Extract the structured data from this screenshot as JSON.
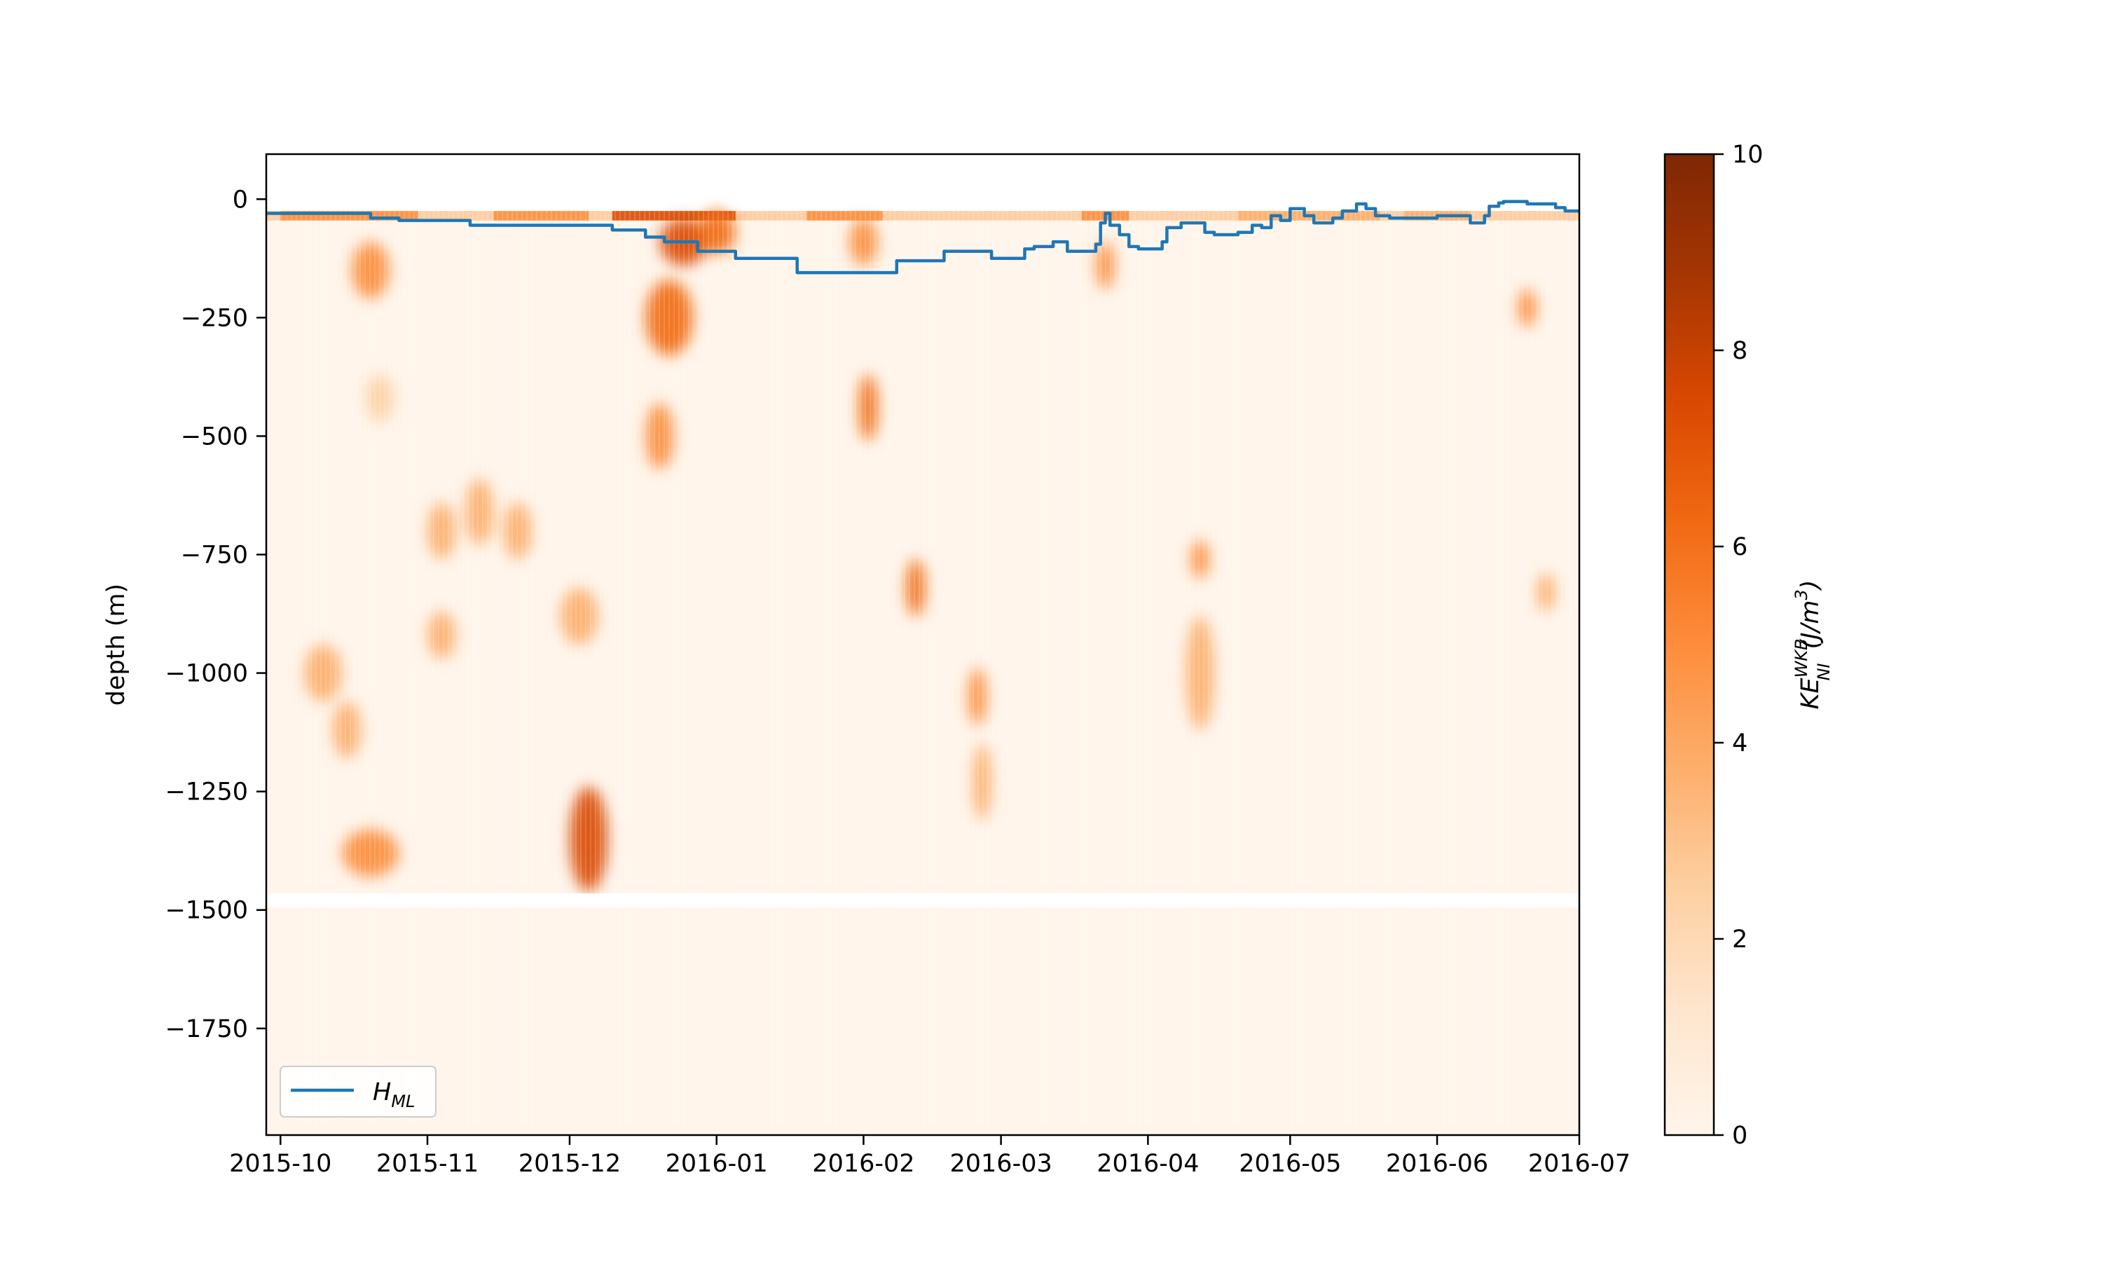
{
  "chart_data": {
    "type": "heatmap",
    "title": "",
    "xlabel": "",
    "ylabel": "depth (m)",
    "x_ticks": [
      "2015-10",
      "2015-11",
      "2015-12",
      "2016-01",
      "2016-02",
      "2016-03",
      "2016-04",
      "2016-05",
      "2016-06",
      "2016-07"
    ],
    "y_ticks": [
      0,
      -250,
      -500,
      -750,
      -1000,
      -1250,
      -1500,
      -1750
    ],
    "xlim": [
      "2015-09-28",
      "2016-07-01"
    ],
    "ylim": [
      -1975,
      95
    ],
    "colorbar": {
      "label_base": "KE",
      "label_sup": "WKB",
      "label_sub": "NI",
      "label_unit": "(J/m",
      "label_unit_sup": "3",
      "label_unit_close": ")",
      "ticks": [
        0,
        2,
        4,
        6,
        8,
        10
      ],
      "range": [
        0,
        10
      ],
      "colormap": "Oranges",
      "colors": [
        "#fff5eb",
        "#fee6ce",
        "#fdd0a2",
        "#fdae6b",
        "#fd8d3c",
        "#f16913",
        "#d94801",
        "#a63603",
        "#7f2704"
      ]
    },
    "legend": {
      "location": "lower-left",
      "entries": [
        {
          "label_base": "H",
          "label_sub": "ML",
          "color": "#1f77b4"
        }
      ]
    },
    "no_data_depth_band": [
      -1465,
      -1495
    ],
    "hotspots": [
      {
        "t": "2015-10-20",
        "depth": -150,
        "value": 5.0,
        "dt": 4,
        "dd": 60
      },
      {
        "t": "2015-10-10",
        "depth": -1000,
        "value": 4.0,
        "dt": 4,
        "dd": 60
      },
      {
        "t": "2015-10-15",
        "depth": -1120,
        "value": 4.0,
        "dt": 3,
        "dd": 60
      },
      {
        "t": "2015-10-20",
        "depth": -1380,
        "value": 4.5,
        "dt": 6,
        "dd": 50
      },
      {
        "t": "2015-10-22",
        "depth": -420,
        "value": 3.0,
        "dt": 3,
        "dd": 50
      },
      {
        "t": "2015-11-04",
        "depth": -700,
        "value": 3.5,
        "dt": 3,
        "dd": 60
      },
      {
        "t": "2015-11-12",
        "depth": -660,
        "value": 3.5,
        "dt": 3,
        "dd": 70
      },
      {
        "t": "2015-11-20",
        "depth": -700,
        "value": 3.5,
        "dt": 3,
        "dd": 60
      },
      {
        "t": "2015-11-04",
        "depth": -920,
        "value": 3.5,
        "dt": 3,
        "dd": 50
      },
      {
        "t": "2015-12-05",
        "depth": -1350,
        "value": 7.0,
        "dt": 4,
        "dd": 110
      },
      {
        "t": "2015-12-03",
        "depth": -880,
        "value": 4.0,
        "dt": 4,
        "dd": 60
      },
      {
        "t": "2015-12-22",
        "depth": -250,
        "value": 6.0,
        "dt": 5,
        "dd": 80
      },
      {
        "t": "2015-12-20",
        "depth": -500,
        "value": 5.0,
        "dt": 3,
        "dd": 70
      },
      {
        "t": "2015-12-25",
        "depth": -90,
        "value": 7.0,
        "dt": 5,
        "dd": 50
      },
      {
        "t": "2016-01-01",
        "depth": -70,
        "value": 6.5,
        "dt": 4,
        "dd": 45
      },
      {
        "t": "2016-02-01",
        "depth": -90,
        "value": 5.0,
        "dt": 3,
        "dd": 50
      },
      {
        "t": "2016-02-02",
        "depth": -440,
        "value": 6.0,
        "dt": 2,
        "dd": 70
      },
      {
        "t": "2016-02-12",
        "depth": -820,
        "value": 6.5,
        "dt": 2,
        "dd": 60
      },
      {
        "t": "2016-02-25",
        "depth": -1050,
        "value": 4.5,
        "dt": 2,
        "dd": 60
      },
      {
        "t": "2016-02-26",
        "depth": -1230,
        "value": 4.0,
        "dt": 2,
        "dd": 80
      },
      {
        "t": "2016-03-23",
        "depth": -140,
        "value": 5.0,
        "dt": 2,
        "dd": 50
      },
      {
        "t": "2016-04-12",
        "depth": -760,
        "value": 4.5,
        "dt": 2,
        "dd": 40
      },
      {
        "t": "2016-04-12",
        "depth": -1000,
        "value": 4.0,
        "dt": 3,
        "dd": 120
      },
      {
        "t": "2016-06-20",
        "depth": -230,
        "value": 4.5,
        "dt": 2,
        "dd": 40
      },
      {
        "t": "2016-06-24",
        "depth": -830,
        "value": 3.5,
        "dt": 2,
        "dd": 40
      }
    ],
    "surface_band": {
      "depth_top": -25,
      "depth_bottom": -45,
      "value": 4.0,
      "intense_periods": [
        [
          "2015-10-01",
          "2015-10-30",
          5.5
        ],
        [
          "2015-11-15",
          "2015-12-05",
          4.5
        ],
        [
          "2015-12-10",
          "2016-01-05",
          7.5
        ],
        [
          "2016-01-20",
          "2016-02-05",
          5.0
        ],
        [
          "2016-03-18",
          "2016-03-28",
          4.5
        ],
        [
          "2016-04-20",
          "2016-05-20",
          4.0
        ],
        [
          "2016-05-25",
          "2016-06-08",
          3.5
        ]
      ]
    },
    "series": [
      {
        "name_base": "H",
        "name_sub": "ML",
        "x": [
          "2015-09-28",
          "2015-10-20",
          "2015-10-26",
          "2015-11-10",
          "2015-11-25",
          "2015-12-10",
          "2015-12-17",
          "2015-12-21",
          "2015-12-28",
          "2016-01-05",
          "2016-01-18",
          "2016-02-01",
          "2016-02-08",
          "2016-02-18",
          "2016-02-28",
          "2016-03-02",
          "2016-03-06",
          "2016-03-08",
          "2016-03-12",
          "2016-03-15",
          "2016-03-18",
          "2016-03-21",
          "2016-03-22",
          "2016-03-23",
          "2016-03-24",
          "2016-03-26",
          "2016-03-28",
          "2016-03-30",
          "2016-04-04",
          "2016-04-05",
          "2016-04-08",
          "2016-04-11",
          "2016-04-13",
          "2016-04-15",
          "2016-04-20",
          "2016-04-23",
          "2016-04-25",
          "2016-04-27",
          "2016-04-29",
          "2016-05-01",
          "2016-05-04",
          "2016-05-06",
          "2016-05-09",
          "2016-05-10",
          "2016-05-12",
          "2016-05-15",
          "2016-05-17",
          "2016-05-19",
          "2016-05-22",
          "2016-05-27",
          "2016-06-01",
          "2016-06-08",
          "2016-06-11",
          "2016-06-12",
          "2016-06-14",
          "2016-06-15",
          "2016-06-17",
          "2016-06-20",
          "2016-06-23",
          "2016-06-26",
          "2016-06-28",
          "2016-07-01"
        ],
        "y": [
          -30,
          -40,
          -45,
          -55,
          -55,
          -65,
          -80,
          -90,
          -110,
          -125,
          -155,
          -155,
          -130,
          -110,
          -125,
          -125,
          -105,
          -100,
          -90,
          -110,
          -110,
          -95,
          -50,
          -30,
          -55,
          -75,
          -100,
          -105,
          -90,
          -60,
          -50,
          -50,
          -70,
          -75,
          -70,
          -55,
          -60,
          -35,
          -45,
          -20,
          -35,
          -50,
          -50,
          -40,
          -25,
          -10,
          -20,
          -35,
          -40,
          -40,
          -35,
          -50,
          -35,
          -15,
          -8,
          -5,
          -5,
          -10,
          -10,
          -18,
          -25,
          -25
        ]
      }
    ]
  }
}
